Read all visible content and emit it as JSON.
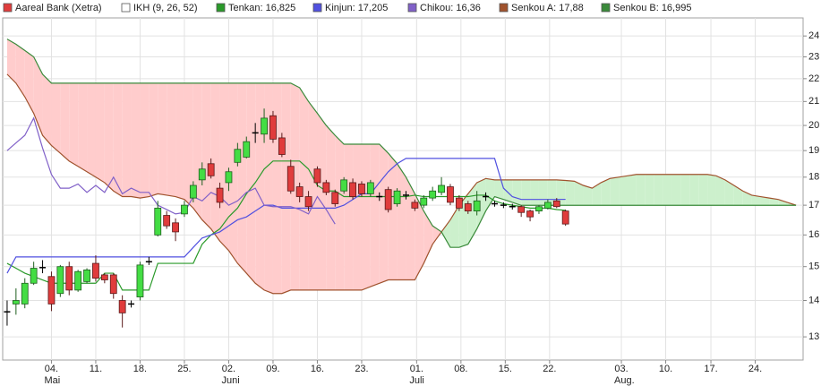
{
  "chart_data": {
    "type": "candlestick",
    "log_scale": true,
    "grid": true,
    "ylim": [
      12.4,
      24.9
    ],
    "yticks": [
      13,
      14,
      15,
      16,
      17,
      18,
      19,
      20,
      21,
      22,
      23,
      24
    ],
    "xlim": [
      -0.5,
      89.8
    ],
    "xticks": [
      {
        "value": 5,
        "label": "04."
      },
      {
        "value": 10,
        "label": "11."
      },
      {
        "value": 15,
        "label": "18."
      },
      {
        "value": 20,
        "label": "25."
      },
      {
        "value": 25,
        "label": "02."
      },
      {
        "value": 30,
        "label": "09."
      },
      {
        "value": 35,
        "label": "16."
      },
      {
        "value": 40,
        "label": "23."
      },
      {
        "value": 46.2,
        "label": "01."
      },
      {
        "value": 51.2,
        "label": "08."
      },
      {
        "value": 56.2,
        "label": "15."
      },
      {
        "value": 61.2,
        "label": "22."
      },
      {
        "value": 69.3,
        "label": "03."
      },
      {
        "value": 74.3,
        "label": "10."
      },
      {
        "value": 79.4,
        "label": "17."
      },
      {
        "value": 84.4,
        "label": "24."
      }
    ],
    "month_labels": [
      {
        "value": 5,
        "label": "Mai"
      },
      {
        "value": 25,
        "label": "Juni"
      },
      {
        "value": 46.2,
        "label": "Juli"
      },
      {
        "value": 69.3,
        "label": "Aug."
      }
    ],
    "candles": {
      "name": "Aareal Bank (Xetra)",
      "color": "#e03c3c",
      "up_color": "#44dd44",
      "down_color": "#e03c3c",
      "open": [
        13.68,
        13.9,
        13.9,
        14.5,
        14.97,
        14.7,
        14.2,
        15.0,
        14.3,
        14.55,
        15.1,
        14.75,
        14.75,
        14.0,
        13.9,
        14.1,
        15.15,
        16.0,
        16.65,
        16.4,
        16.7,
        17.25,
        17.9,
        18.5,
        17.6,
        17.8,
        18.55,
        18.75,
        19.7,
        19.65,
        20.4,
        19.5,
        18.4,
        17.65,
        17.3,
        18.3,
        17.8,
        17.45,
        17.5,
        17.8,
        17.75,
        17.4,
        17.3,
        17.55,
        17.05,
        17.35,
        17.1,
        17.0,
        17.25,
        17.45,
        17.65,
        17.25,
        17.05,
        16.8,
        17.3,
        17.05,
        17.0,
        16.95,
        16.95,
        16.8,
        16.8,
        16.9,
        17.15,
        16.8
      ],
      "high": [
        14.0,
        14.35,
        14.65,
        15.15,
        15.2,
        14.85,
        15.05,
        15.15,
        14.9,
        14.95,
        15.35,
        14.8,
        14.8,
        14.15,
        14.0,
        15.15,
        15.3,
        17.15,
        16.8,
        16.55,
        17.15,
        17.85,
        18.55,
        18.7,
        17.8,
        18.35,
        19.3,
        19.55,
        20.1,
        20.7,
        20.6,
        19.7,
        18.65,
        17.8,
        17.5,
        18.4,
        17.9,
        17.55,
        18.0,
        17.95,
        17.85,
        17.9,
        17.45,
        17.65,
        17.6,
        17.5,
        17.2,
        17.35,
        17.65,
        18.0,
        17.75,
        17.35,
        17.15,
        17.5,
        17.45,
        17.15,
        17.1,
        17.05,
        17.0,
        16.85,
        17.0,
        17.2,
        17.25,
        16.85
      ],
      "low": [
        13.3,
        13.6,
        13.78,
        14.45,
        14.8,
        13.7,
        14.1,
        14.15,
        14.25,
        14.5,
        14.55,
        14.5,
        14.05,
        13.25,
        13.8,
        14.0,
        15.05,
        15.95,
        16.2,
        15.8,
        16.6,
        17.1,
        17.7,
        17.95,
        16.9,
        17.5,
        18.4,
        18.7,
        19.3,
        19.3,
        19.3,
        18.75,
        17.4,
        17.1,
        16.8,
        17.65,
        17.35,
        16.95,
        17.4,
        17.2,
        17.3,
        17.3,
        17.15,
        16.75,
        16.95,
        17.2,
        16.8,
        16.9,
        17.15,
        17.35,
        17.0,
        16.8,
        16.7,
        16.65,
        17.15,
        16.95,
        16.9,
        16.85,
        16.6,
        16.45,
        16.7,
        16.85,
        16.9,
        16.3
      ],
      "close": [
        13.68,
        14.0,
        14.5,
        14.95,
        14.97,
        13.9,
        15.0,
        14.3,
        14.85,
        14.9,
        14.65,
        14.6,
        14.2,
        13.65,
        13.9,
        15.05,
        15.15,
        16.9,
        16.3,
        16.1,
        17.0,
        17.7,
        18.3,
        18.05,
        17.1,
        18.2,
        19.05,
        19.35,
        19.7,
        20.3,
        19.45,
        18.85,
        17.5,
        17.3,
        16.95,
        17.8,
        17.45,
        17.05,
        17.9,
        17.3,
        17.4,
        17.8,
        17.3,
        16.85,
        17.5,
        17.35,
        16.9,
        17.25,
        17.5,
        17.7,
        17.1,
        16.9,
        16.8,
        17.15,
        17.3,
        17.05,
        17.0,
        16.95,
        16.75,
        16.6,
        16.95,
        17.1,
        16.95,
        16.36
      ]
    },
    "indicator": {
      "name": "IKH (9, 26, 52)",
      "color": "#ffffff"
    },
    "lines": [
      {
        "name": "Tenkan: 16,825",
        "color": "#2a9a2a",
        "values": [
          15.1,
          14.95,
          14.8,
          14.7,
          14.6,
          14.5,
          14.5,
          14.5,
          14.5,
          14.5,
          14.5,
          14.8,
          14.8,
          14.3,
          14.3,
          14.3,
          14.3,
          15.1,
          15.1,
          15.1,
          15.1,
          15.1,
          15.7,
          16.0,
          16.2,
          16.6,
          16.9,
          17.4,
          17.8,
          18.3,
          18.6,
          18.6,
          18.6,
          18.6,
          18.3,
          17.7,
          17.5,
          17.5,
          17.3,
          17.3,
          17.3,
          17.3,
          17.3,
          17.3,
          17.3,
          17.3,
          17.35,
          17.3,
          17.3,
          17.3,
          17.3,
          17.3,
          17.3,
          17.35,
          17.35,
          17.15,
          17.05,
          17.0,
          16.95,
          16.9,
          16.9,
          16.9,
          16.85,
          16.825
        ]
      },
      {
        "name": "Kinjun: 17,205",
        "color": "#5050e0",
        "values": [
          14.8,
          15.3,
          15.3,
          15.3,
          15.3,
          15.3,
          15.3,
          15.3,
          15.3,
          15.3,
          15.3,
          15.3,
          15.3,
          15.3,
          15.3,
          15.3,
          15.3,
          15.3,
          15.3,
          15.3,
          15.3,
          15.6,
          15.9,
          16.0,
          16.1,
          16.3,
          16.5,
          16.6,
          16.8,
          17.0,
          17.0,
          16.9,
          16.9,
          16.9,
          16.9,
          16.9,
          16.9,
          16.9,
          17.0,
          17.2,
          17.4,
          17.4,
          17.8,
          18.2,
          18.5,
          18.7,
          18.7,
          18.7,
          18.7,
          18.7,
          18.7,
          18.7,
          18.7,
          18.7,
          18.7,
          18.7,
          17.6,
          17.3,
          17.2,
          17.2,
          17.2,
          17.2,
          17.2,
          17.205
        ]
      },
      {
        "name": "Chikou: 16,36",
        "color": "#8060c8",
        "values": [
          19.0,
          19.3,
          19.6,
          20.3,
          19.1,
          18.1,
          17.6,
          17.6,
          17.75,
          17.45,
          17.7,
          17.45,
          18.0,
          17.4,
          17.6,
          17.45,
          17.45,
          17.0,
          16.85,
          16.7,
          16.75,
          17.3,
          17.15,
          17.45,
          17.3,
          17.0,
          17.15,
          17.45,
          17.6,
          17.0,
          16.95,
          16.95,
          16.95,
          16.85,
          16.7,
          17.3,
          16.85,
          16.36
        ]
      }
    ],
    "cloud": {
      "bull_fill": "#ccf0cc",
      "bear_fill": "#ffcccc",
      "span_a": {
        "name": "Senkou A: 17,88",
        "color": "#a0522d",
        "values": [
          22.2,
          21.8,
          21.2,
          20.5,
          19.6,
          19.2,
          18.9,
          18.6,
          18.4,
          18.2,
          18.0,
          17.8,
          17.5,
          17.3,
          17.3,
          17.25,
          17.3,
          17.4,
          17.35,
          17.3,
          17.2,
          16.9,
          16.5,
          16.2,
          15.8,
          15.5,
          15.1,
          14.8,
          14.5,
          14.3,
          14.2,
          14.2,
          14.3,
          14.3,
          14.3,
          14.3,
          14.3,
          14.3,
          14.3,
          14.3,
          14.3,
          14.4,
          14.5,
          14.6,
          14.6,
          14.6,
          14.6,
          15.1,
          15.7,
          16.1,
          16.5,
          17.0,
          17.4,
          17.8,
          17.95,
          17.9,
          17.9,
          17.9,
          17.9,
          17.9,
          17.9,
          17.9,
          17.9,
          17.88,
          17.85,
          17.7,
          17.6,
          17.8,
          17.95,
          18.0,
          18.05,
          18.1,
          18.1,
          18.1,
          18.1,
          18.1,
          18.1,
          18.1,
          18.1,
          18.1,
          18.05,
          17.9,
          17.7,
          17.5,
          17.35,
          17.3,
          17.25,
          17.2,
          17.1,
          17.0
        ]
      },
      "span_b": {
        "name": "Senkou B: 16,995",
        "color": "#3a8a3a",
        "values": [
          23.85,
          23.6,
          23.3,
          23.0,
          22.2,
          21.8,
          21.8,
          21.8,
          21.8,
          21.8,
          21.8,
          21.8,
          21.8,
          21.8,
          21.8,
          21.8,
          21.8,
          21.8,
          21.8,
          21.8,
          21.8,
          21.8,
          21.8,
          21.8,
          21.8,
          21.8,
          21.8,
          21.8,
          21.8,
          21.8,
          21.8,
          21.8,
          21.8,
          21.6,
          21.0,
          20.5,
          20.0,
          19.6,
          19.25,
          19.25,
          19.25,
          19.25,
          19.25,
          18.9,
          18.5,
          18.0,
          17.4,
          16.8,
          16.3,
          16.1,
          15.6,
          15.6,
          15.7,
          16.2,
          16.8,
          17.3,
          17.2,
          17.1,
          16.995,
          16.995,
          16.995,
          16.995,
          16.995,
          16.995,
          16.995,
          16.995,
          16.995,
          16.995,
          16.995,
          16.995,
          16.995,
          16.995,
          16.995,
          16.995,
          16.995,
          16.995,
          16.995,
          16.995,
          16.995,
          16.995,
          16.995,
          16.995,
          16.995,
          16.995,
          16.995,
          16.995,
          16.995,
          16.995,
          16.995,
          16.995
        ]
      }
    }
  }
}
